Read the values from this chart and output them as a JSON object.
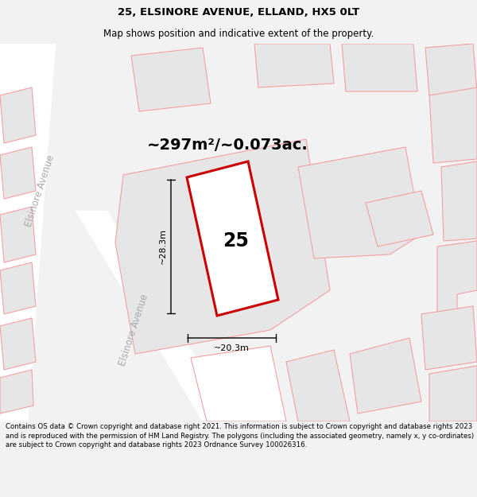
{
  "title": "25, ELSINORE AVENUE, ELLAND, HX5 0LT",
  "subtitle": "Map shows position and indicative extent of the property.",
  "area_text": "~297m²/~0.073ac.",
  "label_25": "25",
  "dim_height": "~28.3m",
  "dim_width": "~20.3m",
  "street_label1": "Elsinore Avenue",
  "street_label2": "Elsinore Avenue",
  "footer": "Contains OS data © Crown copyright and database right 2021. This information is subject to Crown copyright and database rights 2023 and is reproduced with the permission of HM Land Registry. The polygons (including the associated geometry, namely x, y co-ordinates) are subject to Crown copyright and database rights 2023 Ordnance Survey 100026316.",
  "bg_color": "#f2f2f2",
  "map_bg": "#ffffff",
  "plot_outline_color": "#cc0000",
  "other_outline_color": "#f5a0a0",
  "other_fill_color": "#e6e6e6",
  "road_color": "#cccccc",
  "title_fontsize": 9.5,
  "subtitle_fontsize": 8.5,
  "area_fontsize": 14,
  "label_fontsize": 17,
  "dim_fontsize": 8,
  "street_fontsize": 8.5,
  "footer_fontsize": 6.2
}
